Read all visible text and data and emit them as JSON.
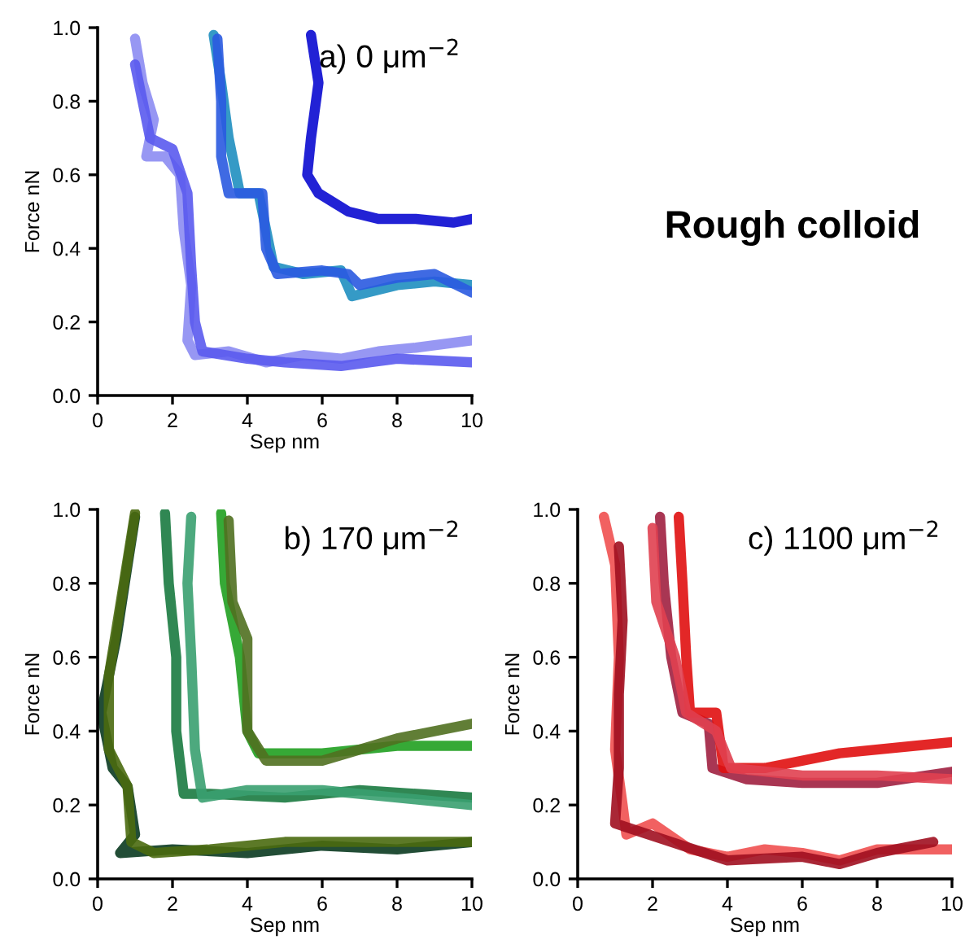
{
  "chart_data": [
    {
      "type": "line",
      "title": "a) 0 μm$^{−2}$",
      "xlabel": "Sep nm",
      "ylabel": "Force nN",
      "annotations": [
        "Rough colloid"
      ],
      "xlim": [
        0,
        10
      ],
      "ylim": [
        0,
        1
      ],
      "xticks": [
        0,
        2,
        4,
        6,
        8,
        10
      ],
      "yticks": [
        {
          "value": 0,
          "label": "0.0"
        },
        {
          "value": 0.2,
          "label": "0.2"
        },
        {
          "value": 0.4,
          "label": "0.4"
        },
        {
          "value": 0.6,
          "label": "0.6"
        },
        {
          "value": 0.8,
          "label": "0.8"
        },
        {
          "value": 1,
          "label": "1.0"
        }
      ],
      "grid": false,
      "legend": false,
      "series": [
        {
          "color": "#8c8cf2",
          "x": [
            1.0,
            1.2,
            1.5,
            1.3,
            1.8,
            2.2,
            2.3,
            2.5,
            2.4,
            2.6,
            3.5,
            4.5,
            5.5,
            6.5,
            7.5,
            8.5,
            10
          ],
          "values": [
            0.97,
            0.85,
            0.75,
            0.65,
            0.65,
            0.6,
            0.45,
            0.3,
            0.15,
            0.11,
            0.12,
            0.09,
            0.11,
            0.1,
            0.12,
            0.13,
            0.15
          ]
        },
        {
          "color": "#5a5aee",
          "x": [
            1.0,
            1.2,
            1.4,
            2.0,
            2.4,
            2.5,
            2.6,
            2.8,
            4,
            5,
            6.5,
            8,
            10
          ],
          "values": [
            0.9,
            0.8,
            0.7,
            0.67,
            0.55,
            0.35,
            0.2,
            0.12,
            0.1,
            0.09,
            0.08,
            0.1,
            0.09
          ]
        },
        {
          "color": "#1f8fc0",
          "x": [
            3.1,
            3.3,
            3.5,
            3.8,
            4.3,
            4.5,
            4.7,
            5.5,
            6.5,
            6.8,
            8,
            9,
            10
          ],
          "values": [
            0.98,
            0.85,
            0.7,
            0.55,
            0.55,
            0.45,
            0.35,
            0.33,
            0.34,
            0.27,
            0.3,
            0.31,
            0.3
          ]
        },
        {
          "color": "#2a5ae0",
          "x": [
            3.2,
            3.3,
            3.3,
            3.5,
            4.4,
            4.5,
            4.8,
            6,
            6.7,
            7,
            8,
            9,
            10
          ],
          "values": [
            0.97,
            0.8,
            0.65,
            0.55,
            0.55,
            0.4,
            0.33,
            0.34,
            0.33,
            0.3,
            0.32,
            0.33,
            0.28
          ]
        },
        {
          "color": "#0a0ad0",
          "x": [
            5.7,
            5.9,
            5.7,
            5.6,
            5.9,
            6.7,
            7.5,
            8.5,
            9.5,
            10
          ],
          "values": [
            0.98,
            0.85,
            0.7,
            0.6,
            0.55,
            0.5,
            0.48,
            0.48,
            0.47,
            0.48
          ]
        }
      ]
    },
    {
      "type": "line",
      "title": "b) 170 μm$^{−2}$",
      "xlabel": "Sep nm",
      "ylabel": "Force nN",
      "xlim": [
        0,
        10
      ],
      "ylim": [
        0,
        1
      ],
      "xticks": [
        0,
        2,
        4,
        6,
        8,
        10
      ],
      "yticks": [
        {
          "value": 0,
          "label": "0.0"
        },
        {
          "value": 0.2,
          "label": "0.2"
        },
        {
          "value": 0.4,
          "label": "0.4"
        },
        {
          "value": 0.6,
          "label": "0.6"
        },
        {
          "value": 0.8,
          "label": "0.8"
        },
        {
          "value": 1,
          "label": "1.0"
        }
      ],
      "grid": false,
      "legend": false,
      "series": [
        {
          "color": "#0a3a20",
          "x": [
            1.0,
            0.8,
            0.5,
            0.1,
            0.4,
            0.8,
            1.0,
            0.6,
            2,
            4,
            6,
            8,
            10
          ],
          "values": [
            0.98,
            0.85,
            0.65,
            0.45,
            0.3,
            0.25,
            0.12,
            0.07,
            0.08,
            0.07,
            0.09,
            0.08,
            0.1
          ]
        },
        {
          "color": "#4a6a10",
          "x": [
            1.0,
            0.7,
            0.3,
            0.3,
            0.8,
            0.9,
            1.5,
            3,
            5,
            7,
            10
          ],
          "values": [
            0.99,
            0.8,
            0.55,
            0.35,
            0.25,
            0.1,
            0.07,
            0.08,
            0.1,
            0.1,
            0.1
          ]
        },
        {
          "color": "#1a7a40",
          "x": [
            1.8,
            1.9,
            2.1,
            2.1,
            2.3,
            3,
            5,
            7,
            10
          ],
          "values": [
            0.99,
            0.8,
            0.6,
            0.4,
            0.23,
            0.23,
            0.22,
            0.24,
            0.22
          ]
        },
        {
          "color": "#3aa070",
          "x": [
            2.5,
            2.4,
            2.5,
            2.6,
            2.8,
            4,
            6,
            8,
            10
          ],
          "values": [
            0.98,
            0.8,
            0.6,
            0.35,
            0.22,
            0.24,
            0.24,
            0.22,
            0.2
          ]
        },
        {
          "color": "#20a020",
          "x": [
            3.3,
            3.4,
            3.8,
            4.0,
            4.3,
            6,
            8,
            10
          ],
          "values": [
            0.99,
            0.8,
            0.6,
            0.4,
            0.34,
            0.34,
            0.36,
            0.36
          ]
        },
        {
          "color": "#507020",
          "x": [
            3.5,
            3.6,
            4.0,
            4.0,
            4.5,
            6,
            8,
            10
          ],
          "values": [
            0.97,
            0.75,
            0.65,
            0.4,
            0.32,
            0.32,
            0.38,
            0.42
          ]
        }
      ]
    },
    {
      "type": "line",
      "title": "c) 1100 μm$^{−2}$",
      "xlabel": "Sep nm",
      "ylabel": "Force nN",
      "xlim": [
        0,
        10
      ],
      "ylim": [
        0,
        1
      ],
      "xticks": [
        0,
        2,
        4,
        6,
        8,
        10
      ],
      "yticks": [
        {
          "value": 0,
          "label": "0.0"
        },
        {
          "value": 0.2,
          "label": "0.2"
        },
        {
          "value": 0.4,
          "label": "0.4"
        },
        {
          "value": 0.6,
          "label": "0.6"
        },
        {
          "value": 0.8,
          "label": "0.8"
        },
        {
          "value": 1,
          "label": "1.0"
        }
      ],
      "grid": false,
      "legend": false,
      "series": [
        {
          "color": "#f05050",
          "x": [
            0.7,
            1.0,
            1.1,
            1.0,
            1.2,
            1.3,
            2,
            3,
            4,
            5,
            6,
            7,
            8,
            10
          ],
          "values": [
            0.98,
            0.85,
            0.6,
            0.35,
            0.2,
            0.12,
            0.15,
            0.08,
            0.06,
            0.08,
            0.07,
            0.05,
            0.08,
            0.08
          ]
        },
        {
          "color": "#a01020",
          "x": [
            1.1,
            1.2,
            1.1,
            1.1,
            1.0,
            2.5,
            4,
            6,
            7,
            8,
            9.5
          ],
          "values": [
            0.9,
            0.7,
            0.5,
            0.3,
            0.15,
            0.1,
            0.05,
            0.06,
            0.04,
            0.07,
            0.1
          ]
        },
        {
          "color": "#a02040",
          "x": [
            2.2,
            2.3,
            2.5,
            2.8,
            3.5,
            3.6,
            4.5,
            6,
            8,
            10
          ],
          "values": [
            0.98,
            0.8,
            0.6,
            0.45,
            0.42,
            0.3,
            0.27,
            0.26,
            0.26,
            0.29
          ]
        },
        {
          "color": "#e01010",
          "x": [
            2.7,
            2.8,
            2.9,
            3.0,
            3.7,
            3.9,
            5,
            7,
            9,
            10
          ],
          "values": [
            0.98,
            0.8,
            0.6,
            0.45,
            0.45,
            0.3,
            0.3,
            0.34,
            0.36,
            0.37
          ]
        },
        {
          "color": "#e04050",
          "x": [
            2.0,
            2.1,
            2.6,
            2.9,
            3.7,
            4.1,
            6,
            8,
            10
          ],
          "values": [
            0.95,
            0.75,
            0.6,
            0.45,
            0.4,
            0.3,
            0.28,
            0.28,
            0.27
          ]
        }
      ]
    }
  ]
}
